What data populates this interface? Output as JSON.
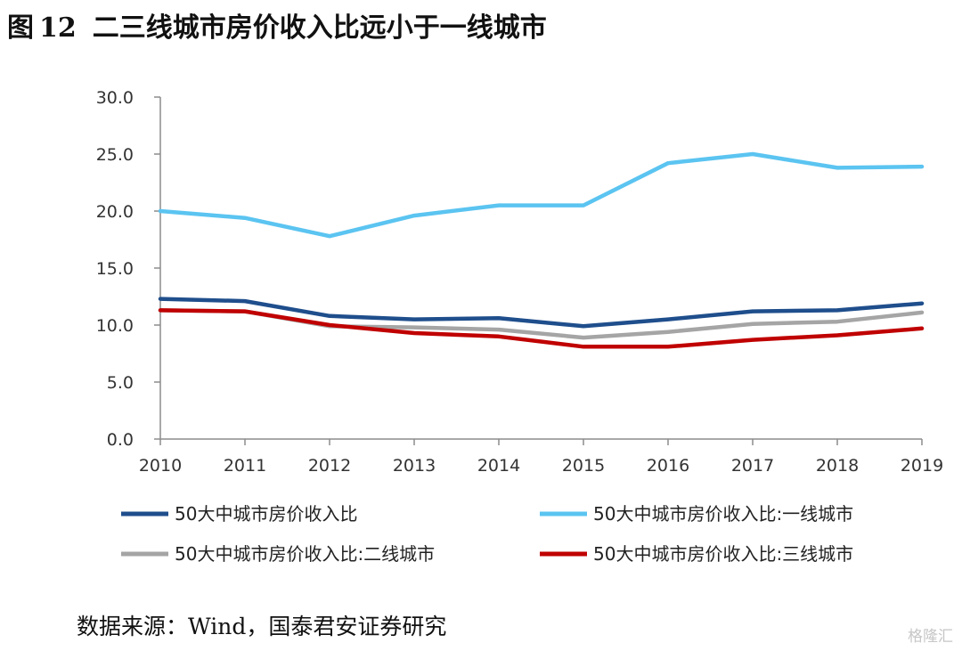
{
  "figure": {
    "label": "图",
    "number": "12",
    "title": "二三线城市房价收入比远小于一线城市"
  },
  "source": "数据来源：Wind，国泰君安证券研究",
  "watermark": "格隆汇",
  "chart_data": {
    "type": "line",
    "x": [
      "2010",
      "2011",
      "2012",
      "2013",
      "2014",
      "2015",
      "2016",
      "2017",
      "2018",
      "2019"
    ],
    "ylim": [
      0,
      30
    ],
    "yticks": [
      "0.0",
      "5.0",
      "10.0",
      "15.0",
      "20.0",
      "25.0",
      "30.0"
    ],
    "grid": false,
    "legend_position": "bottom",
    "series": [
      {
        "name": "50大中城市房价收入比",
        "color": "#1f4e8c",
        "values": [
          12.3,
          12.1,
          10.8,
          10.5,
          10.6,
          9.9,
          10.5,
          11.2,
          11.3,
          11.9
        ]
      },
      {
        "name": "50大中城市房价收入比:一线城市",
        "color": "#5bc4f1",
        "values": [
          20.0,
          19.4,
          17.8,
          19.6,
          20.5,
          20.5,
          24.2,
          25.0,
          23.8,
          23.9
        ]
      },
      {
        "name": "50大中城市房价收入比:二线城市",
        "color": "#a5a5a5",
        "values": [
          11.3,
          11.2,
          9.9,
          9.8,
          9.6,
          8.9,
          9.4,
          10.1,
          10.3,
          11.1
        ]
      },
      {
        "name": "50大中城市房价收入比:三线城市",
        "color": "#c00000",
        "values": [
          11.3,
          11.2,
          10.0,
          9.3,
          9.0,
          8.1,
          8.1,
          8.7,
          9.1,
          9.7
        ]
      }
    ]
  }
}
